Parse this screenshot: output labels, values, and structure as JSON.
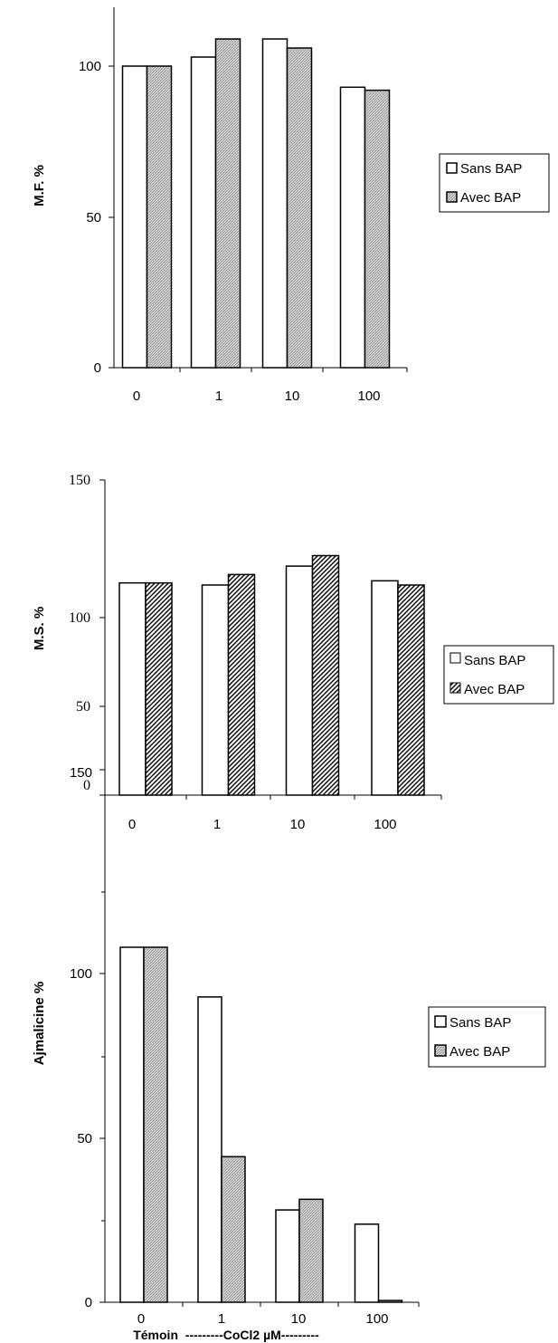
{
  "chart_data": [
    {
      "type": "bar",
      "title": "",
      "xlabel": "",
      "ylabel": "M.F. %",
      "categories": [
        "0",
        "1",
        "10",
        "100"
      ],
      "series": [
        {
          "name": "Sans BAP",
          "values": [
            100,
            103,
            109,
            93
          ],
          "fill": "#ffffff"
        },
        {
          "name": "Avec BAP",
          "values": [
            100,
            109,
            106,
            92
          ],
          "fill": "#c8c8c8",
          "pattern": "fine-gray"
        }
      ],
      "yticks": [
        "0",
        "50",
        "100"
      ],
      "ylim": [
        0,
        120
      ],
      "grid": false,
      "legend": "right"
    },
    {
      "type": "bar",
      "title": "",
      "xlabel": "",
      "ylabel": "M.S. %",
      "categories": [
        "0",
        "1",
        "10",
        "100"
      ],
      "series": [
        {
          "name": "Sans BAP",
          "values": [
            101,
            100,
            109,
            102
          ],
          "fill": "#ffffff"
        },
        {
          "name": "Avec BAP",
          "values": [
            101,
            105,
            114,
            100
          ],
          "fill": "#ffffff",
          "pattern": "diagonal-hatch"
        }
      ],
      "yticks": [
        "0",
        "50",
        "100",
        "150"
      ],
      "ylim": [
        0,
        150
      ],
      "grid": false,
      "legend": "right"
    },
    {
      "type": "bar",
      "title": "",
      "xlabel": "Témoin  ---------CoCl2 µM---------",
      "ylabel": "Ajmalicine %",
      "categories": [
        "0",
        "1",
        "10",
        "100"
      ],
      "series": [
        {
          "name": "Sans BAP",
          "values": [
            100,
            86,
            26,
            22
          ],
          "fill": "#ffffff"
        },
        {
          "name": "Avec BAP",
          "values": [
            100,
            41,
            29,
            0.5
          ],
          "fill": "#c8c8c8",
          "pattern": "fine-gray"
        }
      ],
      "yticks": [
        "0",
        "50",
        "100",
        "150"
      ],
      "ylim": [
        0,
        150
      ],
      "grid": false,
      "legend": "right"
    }
  ]
}
